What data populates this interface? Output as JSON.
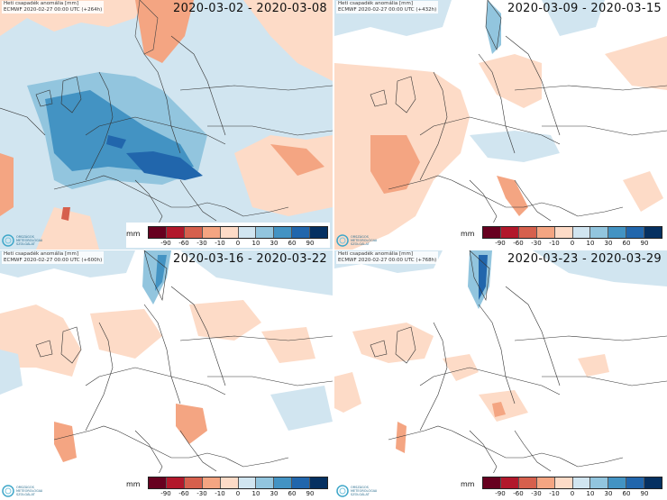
{
  "header_title": "Heti csapadék anomália [mm]",
  "header_subtitle_prefix": "ECMWF 2020-02-27 00:00 UTC",
  "logo_label": "ORSZÁGOS METEOROLÓGIAI SZOLGÁLAT",
  "legend": {
    "unit": "mm",
    "ticks": [
      "-90",
      "-60",
      "-30",
      "-10",
      "0",
      "10",
      "30",
      "60",
      "90"
    ],
    "colors": [
      "#67001f",
      "#b2182b",
      "#d6604d",
      "#f4a582",
      "#fddbc7",
      "#d1e5f0",
      "#92c5de",
      "#4393c3",
      "#2166ac",
      "#053061"
    ]
  },
  "panels": [
    {
      "date_range": "2020-03-02 - 2020-03-08",
      "lead": "(+264h)",
      "dominant": "wet"
    },
    {
      "date_range": "2020-03-09 - 2020-03-15",
      "lead": "(+432h)",
      "dominant": "dry"
    },
    {
      "date_range": "2020-03-16 - 2020-03-22",
      "lead": "(+600h)",
      "dominant": "dry"
    },
    {
      "date_range": "2020-03-23 - 2020-03-29",
      "lead": "(+768h)",
      "dominant": "neutral"
    }
  ]
}
